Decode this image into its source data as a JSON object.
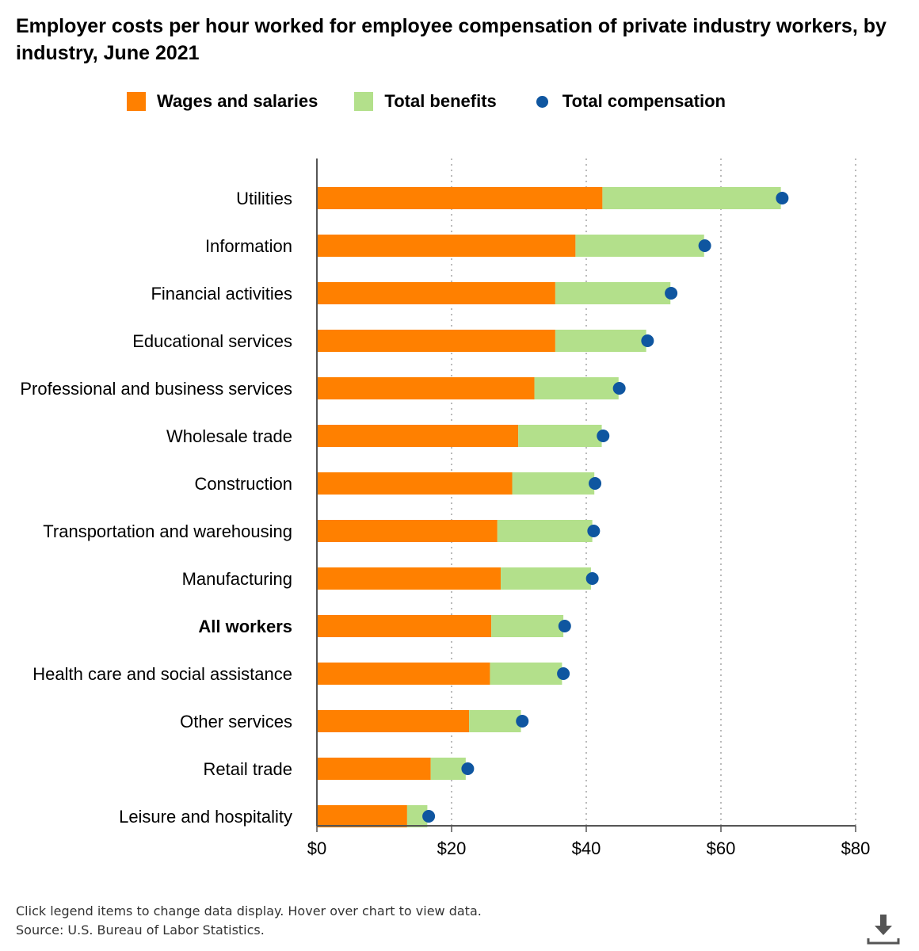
{
  "title": "Employer costs per hour worked for employee compensation of private industry workers, by industry, June 2021",
  "legend": [
    {
      "label": "Wages and salaries",
      "color": "#FF8000",
      "kind": "square"
    },
    {
      "label": "Total benefits",
      "color": "#B3E08B",
      "kind": "square"
    },
    {
      "label": "Total compensation",
      "color": "#0F56A0",
      "kind": "dot"
    }
  ],
  "chart_data": {
    "type": "bar",
    "orientation": "horizontal",
    "stacked": true,
    "title": "Employer costs per hour worked for employee compensation of private industry workers, by industry, June 2021",
    "categories": [
      "Utilities",
      "Information",
      "Financial activities",
      "Educational services",
      "Professional and business services",
      "Wholesale trade",
      "Construction",
      "Transportation and warehousing",
      "Manufacturing",
      "All workers",
      "Health care and social assistance",
      "Other services",
      "Retail trade",
      "Leisure and hospitality"
    ],
    "bold_categories": [
      "All workers"
    ],
    "series": [
      {
        "name": "Wages and salaries",
        "type": "bar",
        "color": "#FF8000",
        "values": [
          42.4,
          38.4,
          35.4,
          35.4,
          32.3,
          29.9,
          29.0,
          26.8,
          27.3,
          25.9,
          25.7,
          22.6,
          16.9,
          13.4
        ]
      },
      {
        "name": "Total benefits",
        "type": "bar",
        "color": "#B3E08B",
        "values": [
          26.5,
          19.1,
          17.1,
          13.5,
          12.5,
          12.4,
          12.2,
          14.1,
          13.4,
          10.7,
          10.7,
          7.7,
          5.2,
          3.0
        ]
      },
      {
        "name": "Total compensation",
        "type": "dot",
        "color": "#0F56A0",
        "values": [
          69.1,
          57.6,
          52.6,
          49.1,
          44.9,
          42.5,
          41.3,
          41.1,
          40.9,
          36.8,
          36.6,
          30.5,
          22.4,
          16.6
        ]
      }
    ],
    "xlim": [
      0,
      80
    ],
    "xticks": [
      0,
      20,
      40,
      60,
      80
    ],
    "tick_labels": [
      "$0",
      "$20",
      "$40",
      "$60",
      "$80"
    ],
    "xlabel": "",
    "ylabel": "",
    "grid": "vertical dotted",
    "legend_position": "top"
  },
  "footer": {
    "note": "Click legend items to change data display. Hover over chart to view data.",
    "source": "Source: U.S. Bureau of Labor Statistics."
  },
  "download": {
    "icon": "download-icon"
  }
}
